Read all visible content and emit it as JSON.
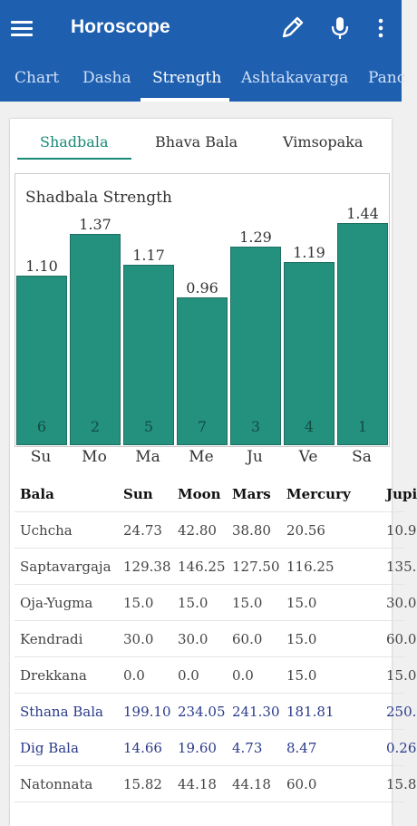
{
  "app": {
    "title": "Horoscope"
  },
  "tabs": [
    "Chart",
    "Dasha",
    "Strength",
    "Ashtakavarga",
    "Panc"
  ],
  "subtabs": [
    "Shadbala",
    "Bhava Bala",
    "Vimsopaka"
  ],
  "colors": {
    "appbar": "#1f5fb0",
    "accent": "#1a8a78",
    "bar": "#23917e"
  },
  "chart_data": {
    "type": "bar",
    "title": "Shadbala Strength",
    "categories": [
      "Su",
      "Mo",
      "Ma",
      "Me",
      "Ju",
      "Ve",
      "Sa"
    ],
    "values": [
      1.1,
      1.37,
      1.17,
      0.96,
      1.29,
      1.19,
      1.44
    ],
    "value_labels": [
      "1.10",
      "1.37",
      "1.17",
      "0.96",
      "1.29",
      "1.19",
      "1.44"
    ],
    "ranks": [
      "6",
      "2",
      "5",
      "7",
      "3",
      "4",
      "1"
    ],
    "ylim": [
      0,
      1.5
    ]
  },
  "table": {
    "headers": [
      "Bala",
      "Sun",
      "Moon",
      "Mars",
      "Mercury",
      "Jupi"
    ],
    "rows": [
      {
        "cells": [
          "Uchcha",
          "24.73",
          "42.80",
          "38.80",
          "20.56",
          "10.9"
        ],
        "total": false
      },
      {
        "cells": [
          "Saptavargaja",
          "129.38",
          "146.25",
          "127.50",
          "116.25",
          "135."
        ],
        "total": false
      },
      {
        "cells": [
          "Oja-Yugma",
          "15.0",
          "15.0",
          "15.0",
          "15.0",
          "30.0"
        ],
        "total": false
      },
      {
        "cells": [
          "Kendradi",
          "30.0",
          "30.0",
          "60.0",
          "15.0",
          "60.0"
        ],
        "total": false
      },
      {
        "cells": [
          "Drekkana",
          "0.0",
          "0.0",
          "0.0",
          "15.0",
          "15.0"
        ],
        "total": false
      },
      {
        "cells": [
          "Sthana Bala",
          "199.10",
          "234.05",
          "241.30",
          "181.81",
          "250."
        ],
        "total": true
      },
      {
        "cells": [
          "Dig Bala",
          "14.66",
          "19.60",
          "4.73",
          "8.47",
          "0.26"
        ],
        "total": true
      },
      {
        "cells": [
          "Natonnata",
          "15.82",
          "44.18",
          "44.18",
          "60.0",
          "15.8"
        ],
        "total": false
      }
    ]
  }
}
